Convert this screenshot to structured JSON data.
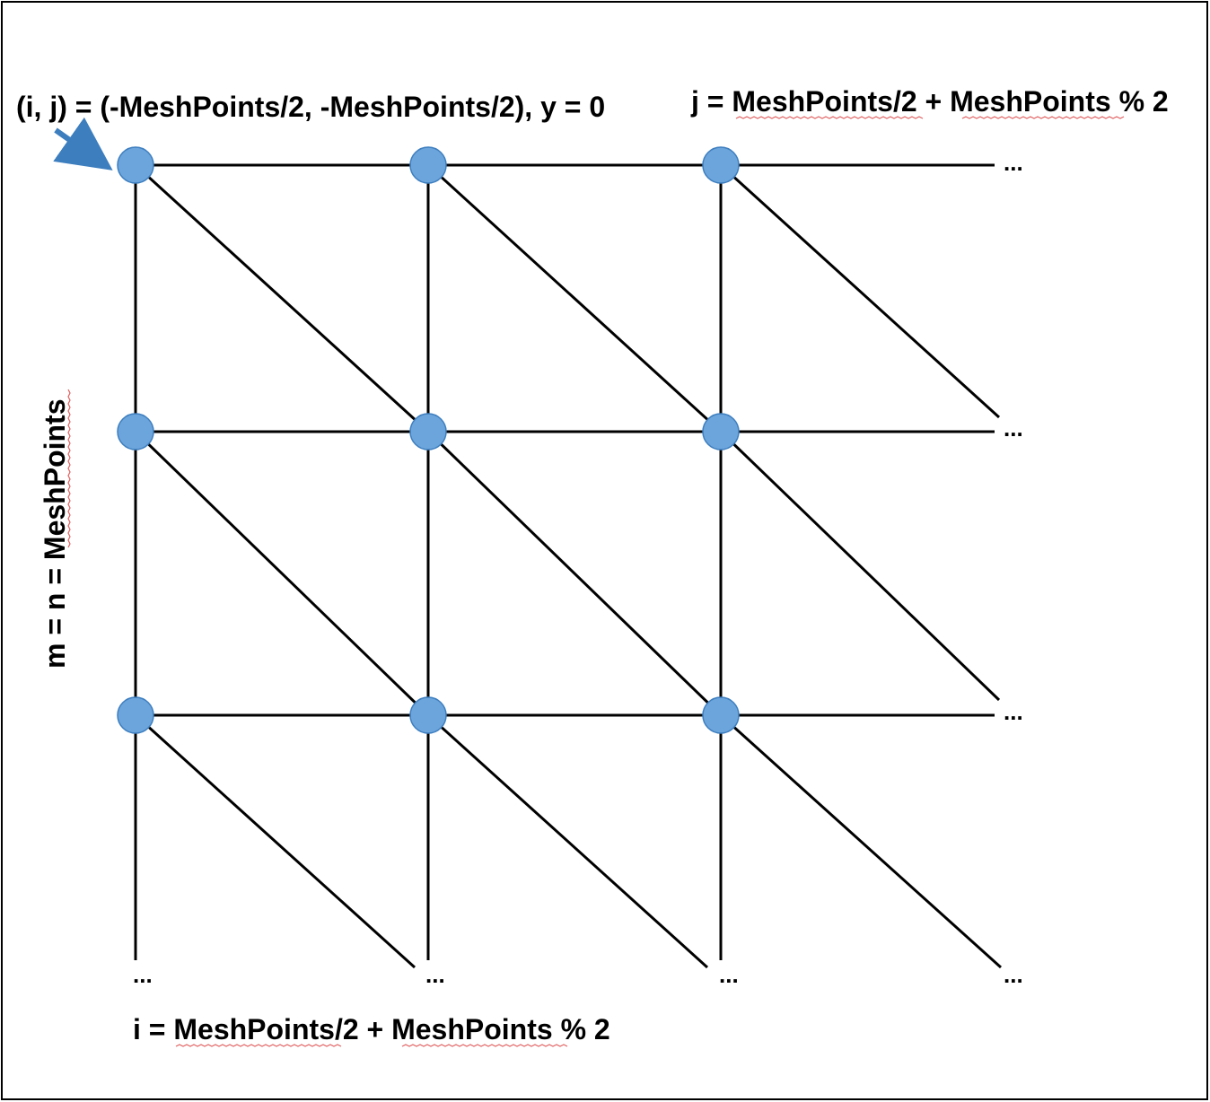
{
  "labels": {
    "origin": "(i, j) = (-MeshPoints/2, -MeshPoints/2), y = 0",
    "j_limit": "j = MeshPoints/2 + MeshPoints % 2",
    "i_limit": "i = MeshPoints/2 + MeshPoints % 2",
    "mesh_size": "m = n = MeshPoints"
  },
  "continuation": "...",
  "colors": {
    "node_fill": "#6ca5dc",
    "node_stroke": "#3d7ebf",
    "arrow": "#3d7ebf",
    "edge": "#000000",
    "frame": "#000000",
    "spellcheck": "#e06060"
  },
  "icons": {
    "pointer": "arrow-icon"
  }
}
